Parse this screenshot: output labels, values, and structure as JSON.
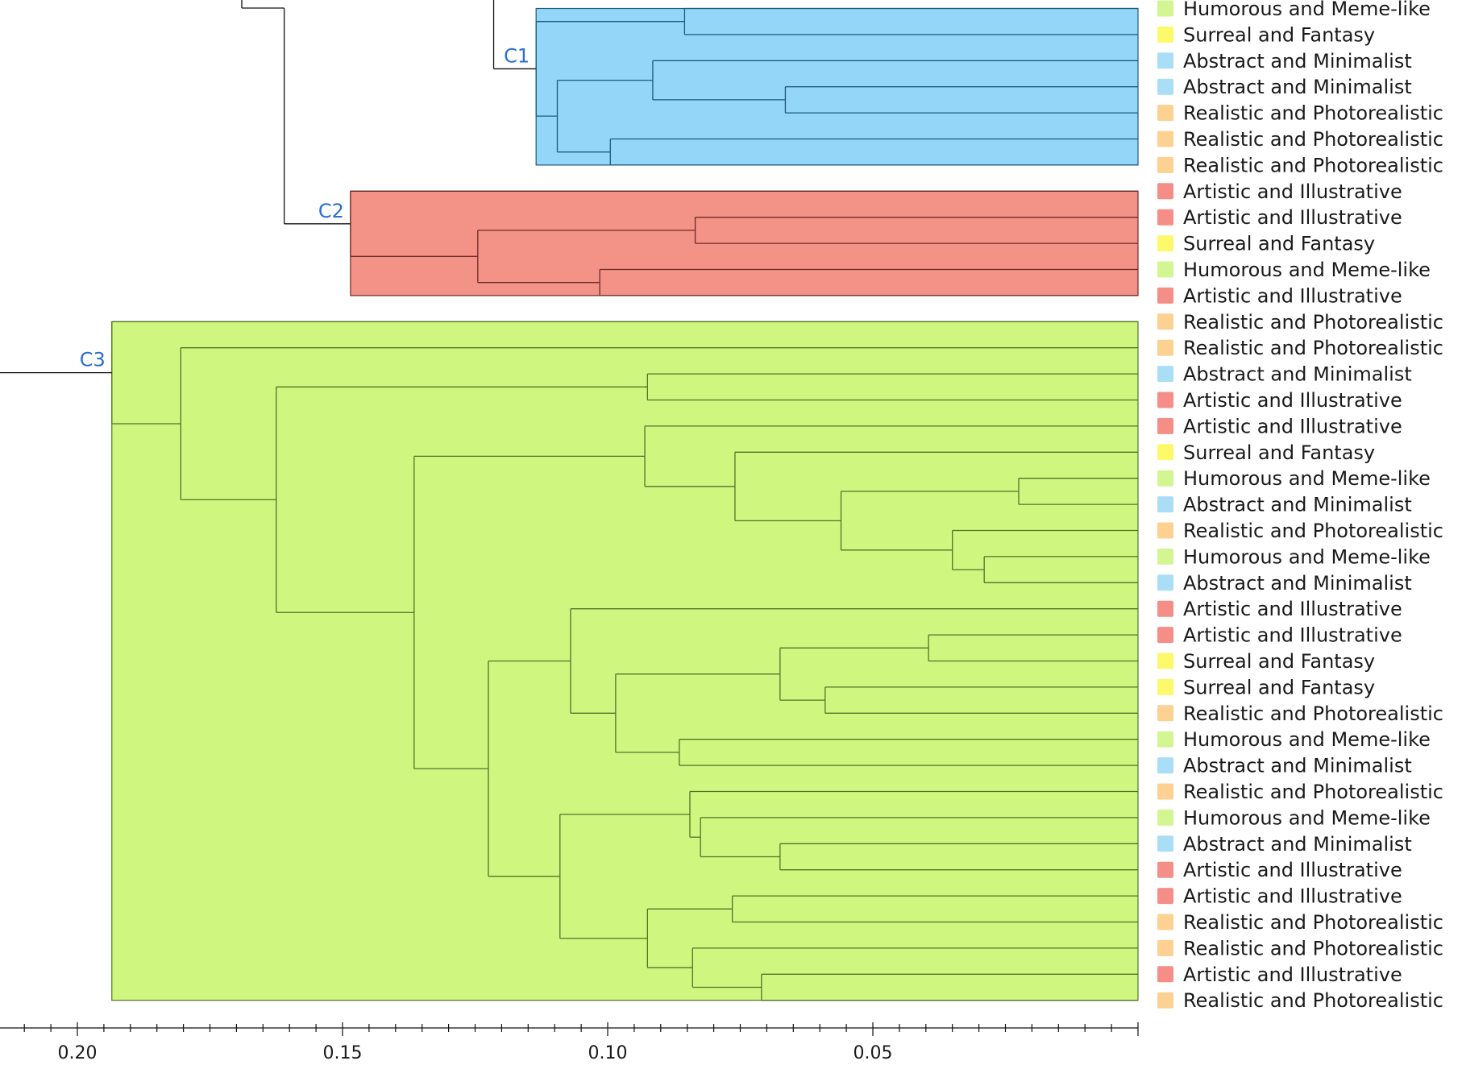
{
  "chart_data": {
    "type": "dendrogram",
    "orientation": "leaves-right",
    "xaxis": {
      "ticks": [
        0.2,
        0.15,
        0.1,
        0.05
      ],
      "tick_labels": [
        "0.20",
        "0.15",
        "0.10",
        "0.05"
      ],
      "range": [
        0.2145,
        0.0
      ]
    },
    "category_colors": {
      "Humorous and Meme-like": "#cdf57f",
      "Surreal and Fantasy": "#fbf851",
      "Abstract and Minimalist": "#9ad8f5",
      "Realistic and Photorealistic": "#fbc97f",
      "Artistic and Illustrative": "#f37a72"
    },
    "leaves": [
      "Humorous and Meme-like",
      "Surreal and Fantasy",
      "Abstract and Minimalist",
      "Abstract and Minimalist",
      "Realistic and Photorealistic",
      "Realistic and Photorealistic",
      "Realistic and Photorealistic",
      "Artistic and Illustrative",
      "Artistic and Illustrative",
      "Surreal and Fantasy",
      "Humorous and Meme-like",
      "Artistic and Illustrative",
      "Realistic and Photorealistic",
      "Realistic and Photorealistic",
      "Abstract and Minimalist",
      "Artistic and Illustrative",
      "Artistic and Illustrative",
      "Surreal and Fantasy",
      "Humorous and Meme-like",
      "Abstract and Minimalist",
      "Realistic and Photorealistic",
      "Humorous and Meme-like",
      "Abstract and Minimalist",
      "Artistic and Illustrative",
      "Artistic and Illustrative",
      "Surreal and Fantasy",
      "Surreal and Fantasy",
      "Realistic and Photorealistic",
      "Humorous and Meme-like",
      "Abstract and Minimalist",
      "Realistic and Photorealistic",
      "Humorous and Meme-like",
      "Abstract and Minimalist",
      "Artistic and Illustrative",
      "Artistic and Illustrative",
      "Realistic and Photorealistic",
      "Realistic and Photorealistic",
      "Artistic and Illustrative",
      "Realistic and Photorealistic"
    ],
    "clusters": [
      {
        "label": "C1",
        "fill": "#93d6f8",
        "stroke": "#1f5a78",
        "first_leaf": 0,
        "last_leaf": 6,
        "tree": {
          "h": 0.1135,
          "c": [
            {
              "h": 0.0855,
              "c": [
                0,
                1
              ]
            },
            {
              "h": 0.1095,
              "c": [
                {
                  "h": 0.0915,
                  "c": [
                    2,
                    {
                      "h": 0.0665,
                      "c": [
                        3,
                        4
                      ]
                    }
                  ]
                },
                {
                  "h": 0.0995,
                  "c": [
                    5,
                    6
                  ]
                }
              ]
            }
          ]
        }
      },
      {
        "label": "C2",
        "fill": "#f39287",
        "stroke": "#6e2a25",
        "first_leaf": 7,
        "last_leaf": 11,
        "tree": {
          "h": 0.1485,
          "c": [
            7,
            {
              "h": 0.1245,
              "c": [
                {
                  "h": 0.0835,
                  "c": [
                    8,
                    9
                  ]
                },
                {
                  "h": 0.1015,
                  "c": [
                    10,
                    11
                  ]
                }
              ]
            }
          ]
        }
      },
      {
        "label": "C3",
        "fill": "#cff67f",
        "stroke": "#55722a",
        "first_leaf": 12,
        "last_leaf": 38,
        "tree": {
          "h": 0.1935,
          "c": [
            12,
            {
              "h": 0.1805,
              "c": [
                13,
                {
                  "h": 0.1625,
                  "c": [
                    {
                      "h": 0.0925,
                      "c": [
                        14,
                        15
                      ]
                    },
                    {
                      "h": 0.1365,
                      "c": [
                        {
                          "h": 0.093,
                          "c": [
                            16,
                            {
                              "h": 0.076,
                              "c": [
                                17,
                                {
                                  "h": 0.056,
                                  "c": [
                                    {
                                      "h": 0.0225,
                                      "c": [
                                        18,
                                        19
                                      ]
                                    },
                                    {
                                      "h": 0.035,
                                      "c": [
                                        20,
                                        {
                                          "h": 0.029,
                                          "c": [
                                            21,
                                            22
                                          ]
                                        }
                                      ]
                                    }
                                  ]
                                }
                              ]
                            }
                          ]
                        },
                        {
                          "h": 0.1225,
                          "c": [
                            {
                              "h": 0.107,
                              "c": [
                                23,
                                {
                                  "h": 0.0985,
                                  "c": [
                                    {
                                      "h": 0.0675,
                                      "c": [
                                        {
                                          "h": 0.0395,
                                          "c": [
                                            24,
                                            25
                                          ]
                                        },
                                        {
                                          "h": 0.059,
                                          "c": [
                                            26,
                                            27
                                          ]
                                        }
                                      ]
                                    },
                                    {
                                      "h": 0.0865,
                                      "c": [
                                        28,
                                        29
                                      ]
                                    }
                                  ]
                                }
                              ]
                            },
                            {
                              "h": 0.109,
                              "c": [
                                {
                                  "h": 0.0845,
                                  "c": [
                                    30,
                                    {
                                      "h": 0.0825,
                                      "c": [
                                        31,
                                        {
                                          "h": 0.0675,
                                          "c": [
                                            32,
                                            33
                                          ]
                                        }
                                      ]
                                    }
                                  ]
                                },
                                {
                                  "h": 0.0925,
                                  "c": [
                                    {
                                      "h": 0.0765,
                                      "c": [
                                        34,
                                        35
                                      ]
                                    },
                                    {
                                      "h": 0.084,
                                      "c": [
                                        36,
                                        {
                                          "h": 0.071,
                                          "c": [
                                            37,
                                            38
                                          ]
                                        }
                                      ]
                                    }
                                  ]
                                }
                              ]
                            }
                          ]
                        }
                      ]
                    }
                  ]
                }
              ]
            }
          ]
        }
      }
    ],
    "upper_links": [
      {
        "h": 0.169,
        "top_leaf": 0
      },
      {
        "h": 0.161,
        "from": "parent_of_C1",
        "to": "C2"
      },
      {
        "h": 0.1215,
        "to": "C1"
      },
      {
        "h": 0.2145,
        "to": "C3"
      }
    ]
  }
}
